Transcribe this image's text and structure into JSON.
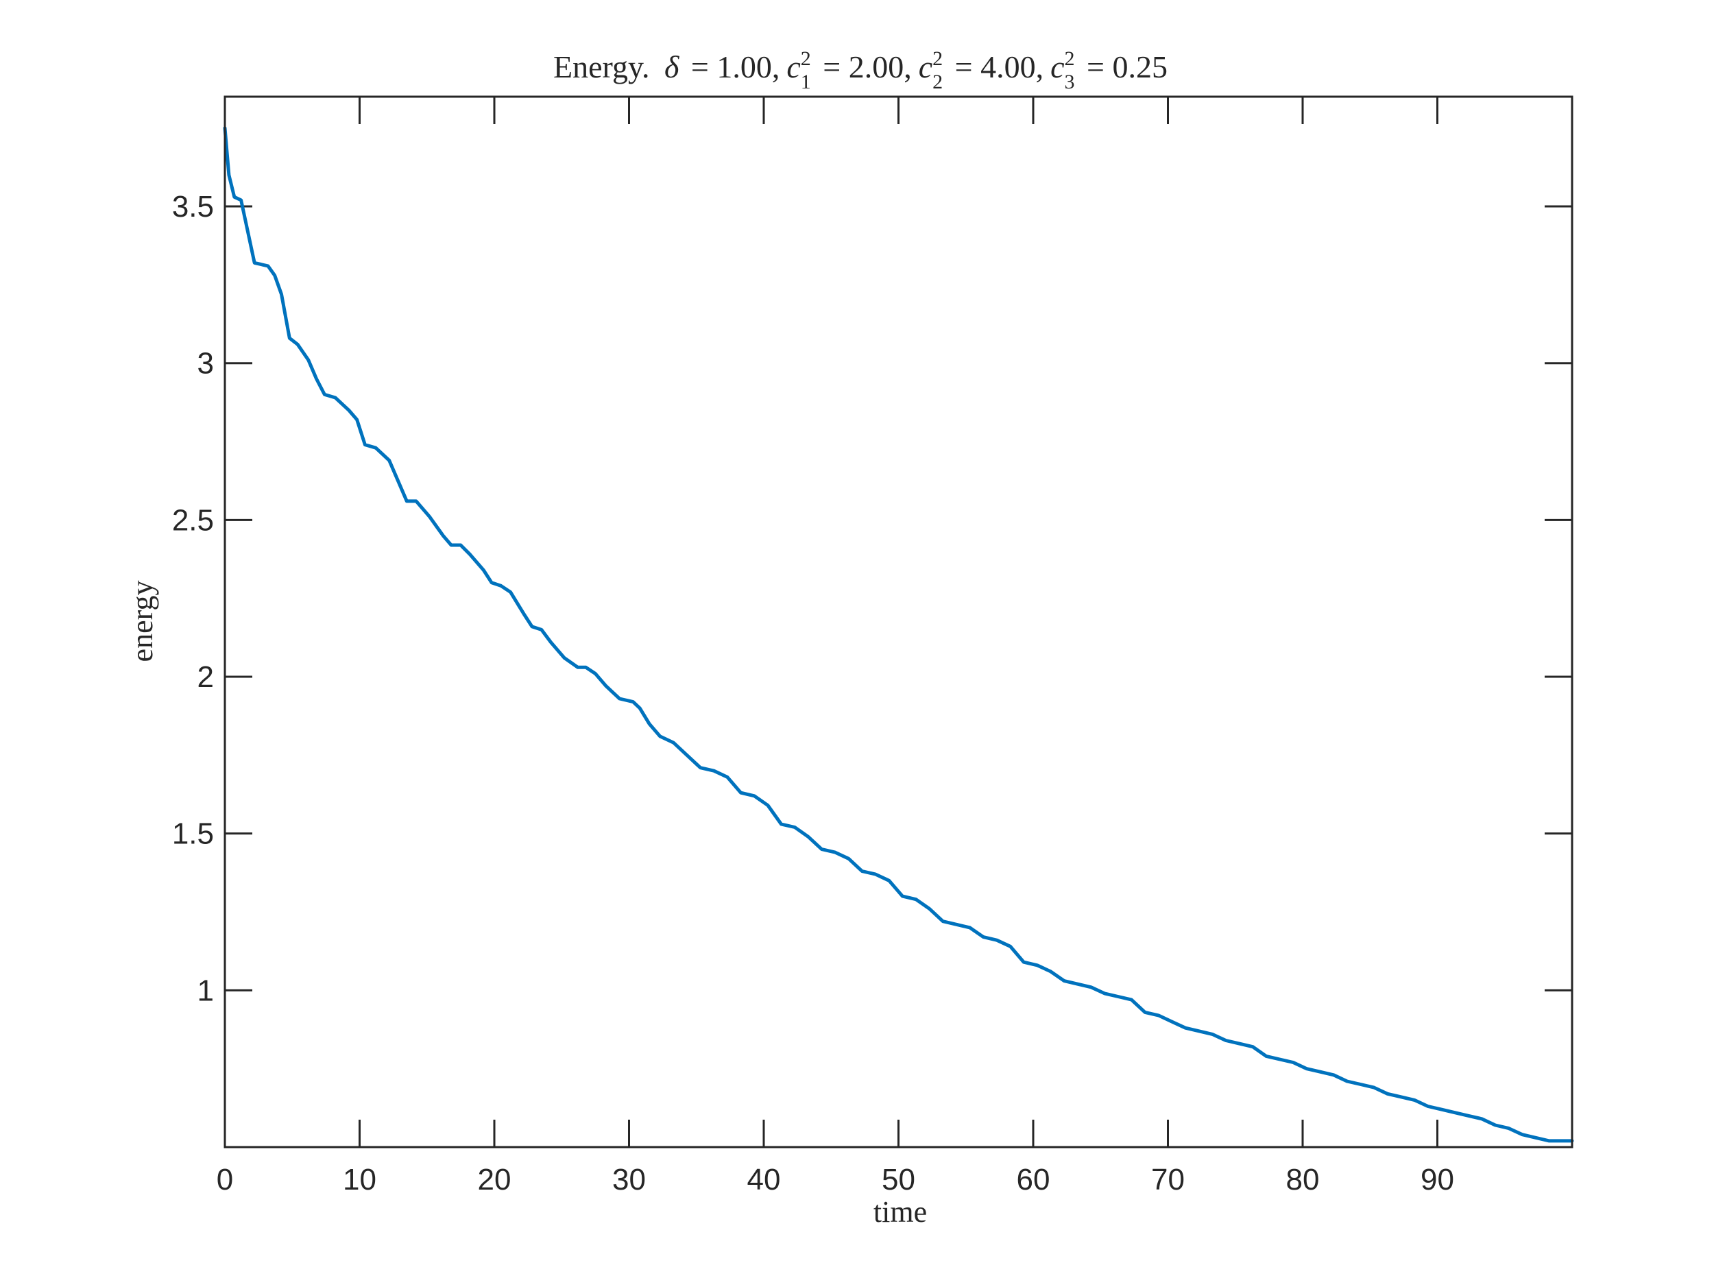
{
  "chart_data": {
    "type": "line",
    "title": {
      "lead": "Energy.",
      "parts": [
        {
          "symbol": "δ",
          "sup": "",
          "sub": "",
          "value": "= 1.00,"
        },
        {
          "symbol": "c",
          "sup": "2",
          "sub": "1",
          "value": "= 2.00,"
        },
        {
          "symbol": "c",
          "sup": "2",
          "sub": "2",
          "value": "= 4.00,"
        },
        {
          "symbol": "c",
          "sup": "2",
          "sub": "3",
          "value": "= 0.25"
        }
      ]
    },
    "xlabel": "time",
    "ylabel": "energy",
    "xlim": [
      0,
      100
    ],
    "ylim": [
      0.5,
      3.85
    ],
    "xticks": [
      0,
      10,
      20,
      30,
      40,
      50,
      60,
      70,
      80,
      90
    ],
    "xtick_labels": [
      "0",
      "10",
      "20",
      "30",
      "40",
      "50",
      "60",
      "70",
      "80",
      "90"
    ],
    "yticks": [
      1,
      1.5,
      2,
      2.5,
      3,
      3.5
    ],
    "ytick_labels": [
      "1",
      "1.5",
      "2",
      "2.5",
      "3",
      "3.5"
    ],
    "grid": false,
    "legend": "none",
    "series": [
      {
        "color": "#0072BD",
        "x": [
          0,
          0.3,
          0.7,
          1.2,
          1.7,
          2.2,
          3.2,
          3.7,
          4.2,
          4.8,
          5.4,
          6.2,
          6.8,
          7.4,
          8.2,
          9.2,
          9.8,
          10.4,
          11.2,
          12.2,
          12.8,
          13.5,
          14.2,
          15.2,
          16.2,
          16.8,
          17.5,
          18.2,
          19.2,
          19.8,
          20.5,
          21.2,
          22.2,
          22.8,
          23.5,
          24.2,
          25.2,
          26.2,
          26.8,
          27.5,
          28.3,
          29.3,
          30.3,
          30.8,
          31.5,
          32.3,
          33.3,
          34.3,
          35.3,
          36.3,
          37.3,
          38.3,
          39.3,
          40.3,
          41.3,
          42.3,
          43.3,
          44.3,
          45.3,
          46.3,
          47.3,
          48.3,
          49.3,
          50.3,
          51.3,
          52.3,
          53.3,
          54.3,
          55.3,
          56.3,
          57.3,
          58.3,
          59.3,
          60.3,
          61.3,
          62.3,
          63.3,
          64.3,
          65.3,
          66.3,
          67.3,
          68.3,
          69.3,
          70.3,
          71.3,
          72.3,
          73.3,
          74.3,
          75.3,
          76.3,
          77.3,
          78.3,
          79.3,
          80.3,
          81.3,
          82.3,
          83.3,
          84.3,
          85.3,
          86.3,
          87.3,
          88.3,
          89.3,
          90.3,
          91.3,
          92.3,
          93.3,
          94.3,
          95.3,
          96.3,
          97.3,
          98.3,
          99.3,
          100
        ],
        "y": [
          3.75,
          3.6,
          3.53,
          3.52,
          3.42,
          3.32,
          3.31,
          3.28,
          3.22,
          3.08,
          3.06,
          3.01,
          2.95,
          2.9,
          2.89,
          2.85,
          2.82,
          2.74,
          2.73,
          2.69,
          2.63,
          2.56,
          2.56,
          2.51,
          2.45,
          2.42,
          2.42,
          2.39,
          2.34,
          2.3,
          2.29,
          2.27,
          2.2,
          2.16,
          2.15,
          2.11,
          2.06,
          2.03,
          2.03,
          2.01,
          1.97,
          1.93,
          1.92,
          1.9,
          1.85,
          1.81,
          1.79,
          1.75,
          1.71,
          1.7,
          1.68,
          1.63,
          1.62,
          1.59,
          1.53,
          1.52,
          1.49,
          1.45,
          1.44,
          1.42,
          1.38,
          1.37,
          1.35,
          1.3,
          1.29,
          1.26,
          1.22,
          1.21,
          1.2,
          1.17,
          1.16,
          1.14,
          1.09,
          1.08,
          1.06,
          1.03,
          1.02,
          1.01,
          0.99,
          0.98,
          0.97,
          0.93,
          0.92,
          0.9,
          0.88,
          0.87,
          0.86,
          0.84,
          0.83,
          0.82,
          0.79,
          0.78,
          0.77,
          0.75,
          0.74,
          0.73,
          0.71,
          0.7,
          0.69,
          0.67,
          0.66,
          0.65,
          0.63,
          0.62,
          0.61,
          0.6,
          0.59,
          0.57,
          0.56,
          0.54,
          0.53,
          0.52,
          0.52,
          0.52
        ]
      }
    ]
  }
}
